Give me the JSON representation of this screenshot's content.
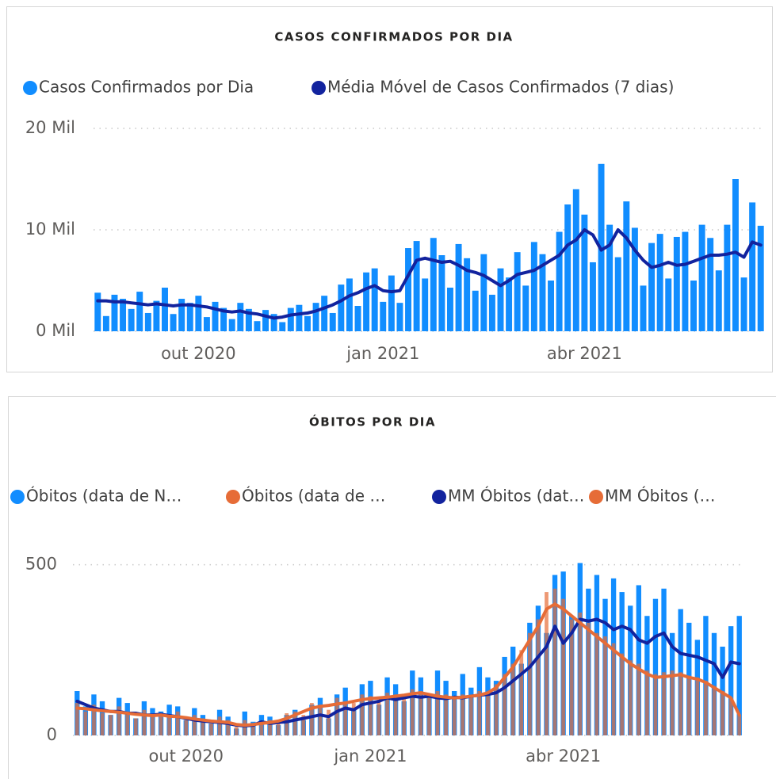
{
  "chart_data": [
    {
      "type": "combo",
      "title": "CASOS CONFIRMADOS POR DIA",
      "categories": [
        null,
        null,
        null,
        null,
        null,
        null,
        null,
        null,
        null,
        null,
        null,
        null,
        "out 2020",
        null,
        null,
        null,
        null,
        null,
        null,
        null,
        null,
        null,
        null,
        null,
        null,
        null,
        null,
        null,
        null,
        null,
        null,
        null,
        null,
        null,
        "jan 2021",
        null,
        null,
        null,
        null,
        null,
        null,
        null,
        null,
        null,
        null,
        null,
        null,
        null,
        null,
        null,
        null,
        null,
        null,
        null,
        null,
        null,
        null,
        null,
        "abr 2021",
        null,
        null,
        null,
        null,
        null,
        null,
        null,
        null,
        null,
        null,
        null,
        null,
        null,
        null,
        null,
        null,
        null,
        null,
        null,
        null,
        null
      ],
      "series": [
        {
          "name": "Casos Confirmados por Dia",
          "color": "#118dff",
          "style": "bar",
          "values": [
            3800,
            1500,
            3600,
            3200,
            2200,
            3900,
            1800,
            3000,
            4300,
            1700,
            3200,
            2800,
            3500,
            1400,
            2900,
            2300,
            1200,
            2800,
            2200,
            1000,
            2100,
            1700,
            900,
            2300,
            2600,
            1500,
            2800,
            3500,
            1800,
            4600,
            5200,
            2500,
            5800,
            6200,
            2900,
            5500,
            2800,
            8200,
            8900,
            5200,
            9200,
            7500,
            4300,
            8600,
            7200,
            4000,
            7600,
            3600,
            6200,
            5300,
            7800,
            4500,
            8800,
            7600,
            5000,
            9800,
            12500,
            14000,
            11500,
            6800,
            16500,
            10500,
            7300,
            12800,
            10200,
            4500,
            8700,
            9600,
            5200,
            9300,
            9800,
            5000,
            10500,
            9200,
            6000,
            10500,
            15000,
            5300,
            12700,
            10400
          ]
        },
        {
          "name": "Média Móvel de Casos Confirmados (7 dias)",
          "color": "#12239e",
          "style": "line",
          "values": [
            3000,
            3000,
            2900,
            2900,
            2800,
            2700,
            2600,
            2700,
            2600,
            2500,
            2600,
            2600,
            2500,
            2400,
            2200,
            2000,
            1900,
            2000,
            1800,
            1700,
            1500,
            1300,
            1400,
            1600,
            1700,
            1800,
            2000,
            2300,
            2600,
            3000,
            3500,
            3800,
            4200,
            4500,
            4000,
            3900,
            4000,
            5500,
            7000,
            7200,
            7000,
            6800,
            6900,
            6500,
            6000,
            5800,
            5500,
            5000,
            4500,
            5000,
            5600,
            5800,
            6000,
            6500,
            7000,
            7500,
            8500,
            9000,
            10000,
            9500,
            8000,
            8500,
            10000,
            9200,
            8000,
            7000,
            6300,
            6500,
            6800,
            6500,
            6600,
            6900,
            7200,
            7500,
            7500,
            7600,
            7800,
            7300,
            8800,
            8500
          ]
        }
      ],
      "ylim": [
        0,
        20000
      ],
      "yticks": [
        {
          "value": 0,
          "label": "0 Mil"
        },
        {
          "value": 10000,
          "label": "10 Mil"
        },
        {
          "value": 20000,
          "label": "20 Mil"
        }
      ],
      "grid": true
    },
    {
      "type": "combo",
      "title": "ÓBITOS POR DIA",
      "categories": [
        null,
        null,
        null,
        null,
        null,
        null,
        null,
        null,
        null,
        null,
        null,
        null,
        null,
        "out 2020",
        null,
        null,
        null,
        null,
        null,
        null,
        null,
        null,
        null,
        null,
        null,
        null,
        null,
        null,
        null,
        null,
        null,
        null,
        null,
        null,
        null,
        "jan 2021",
        null,
        null,
        null,
        null,
        null,
        null,
        null,
        null,
        null,
        null,
        null,
        null,
        null,
        null,
        null,
        null,
        null,
        null,
        null,
        null,
        null,
        null,
        "abr 2021",
        null,
        null,
        null,
        null,
        null,
        null,
        null,
        null,
        null,
        null,
        null,
        null,
        null,
        null,
        null,
        null,
        null,
        null,
        null,
        null,
        null
      ],
      "series": [
        {
          "name": "Óbitos (data de N…",
          "color": "#118dff",
          "style": "bar",
          "values": [
            130,
            85,
            120,
            100,
            60,
            110,
            95,
            50,
            100,
            80,
            70,
            90,
            85,
            45,
            80,
            60,
            35,
            75,
            55,
            20,
            70,
            40,
            60,
            55,
            30,
            60,
            75,
            45,
            90,
            110,
            50,
            120,
            140,
            80,
            150,
            160,
            90,
            170,
            150,
            100,
            190,
            170,
            110,
            190,
            160,
            130,
            180,
            140,
            200,
            170,
            160,
            230,
            260,
            210,
            330,
            380,
            300,
            470,
            480,
            350,
            505,
            430,
            470,
            400,
            460,
            420,
            380,
            440,
            350,
            400,
            430,
            300,
            370,
            330,
            280,
            350,
            300,
            260,
            320,
            350
          ]
        },
        {
          "name": "Óbitos (data de …",
          "color": "#e66c37",
          "style": "bar",
          "values": [
            95,
            70,
            90,
            65,
            60,
            85,
            70,
            50,
            75,
            55,
            65,
            60,
            70,
            45,
            60,
            50,
            35,
            55,
            45,
            25,
            45,
            30,
            40,
            45,
            35,
            65,
            70,
            60,
            95,
            90,
            75,
            110,
            100,
            95,
            120,
            115,
            105,
            125,
            120,
            110,
            135,
            130,
            115,
            130,
            120,
            110,
            120,
            110,
            130,
            125,
            150,
            180,
            210,
            250,
            300,
            340,
            420,
            430,
            400,
            340,
            360,
            330,
            300,
            290,
            270,
            240,
            220,
            210,
            190,
            180,
            185,
            190,
            185,
            175,
            170,
            160,
            145,
            130,
            110,
            60
          ]
        },
        {
          "name": "MM Óbitos (dat…",
          "color": "#12239e",
          "style": "line",
          "values": [
            100,
            90,
            80,
            75,
            70,
            70,
            65,
            65,
            60,
            60,
            62,
            58,
            55,
            50,
            45,
            42,
            40,
            38,
            35,
            30,
            28,
            30,
            40,
            35,
            38,
            40,
            45,
            50,
            55,
            60,
            55,
            70,
            80,
            75,
            90,
            95,
            100,
            110,
            105,
            110,
            115,
            112,
            115,
            110,
            108,
            112,
            110,
            115,
            118,
            120,
            125,
            140,
            160,
            180,
            200,
            230,
            260,
            320,
            270,
            300,
            340,
            335,
            340,
            330,
            310,
            320,
            310,
            280,
            270,
            290,
            300,
            260,
            240,
            235,
            230,
            220,
            210,
            170,
            215,
            210
          ]
        },
        {
          "name": "MM Óbitos (…",
          "color": "#e66c37",
          "style": "line",
          "values": [
            80,
            78,
            75,
            72,
            70,
            68,
            65,
            62,
            60,
            58,
            60,
            56,
            55,
            52,
            48,
            45,
            42,
            40,
            38,
            32,
            30,
            32,
            35,
            38,
            42,
            50,
            60,
            70,
            80,
            85,
            88,
            92,
            95,
            100,
            105,
            108,
            110,
            112,
            115,
            118,
            122,
            125,
            120,
            115,
            112,
            110,
            112,
            115,
            118,
            125,
            140,
            170,
            200,
            240,
            280,
            320,
            370,
            385,
            370,
            350,
            330,
            310,
            290,
            270,
            250,
            230,
            210,
            195,
            180,
            170,
            172,
            175,
            178,
            170,
            165,
            155,
            140,
            125,
            110,
            60
          ]
        }
      ],
      "ylim": [
        0,
        520
      ],
      "yticks": [
        0,
        500
      ],
      "grid": true
    }
  ]
}
